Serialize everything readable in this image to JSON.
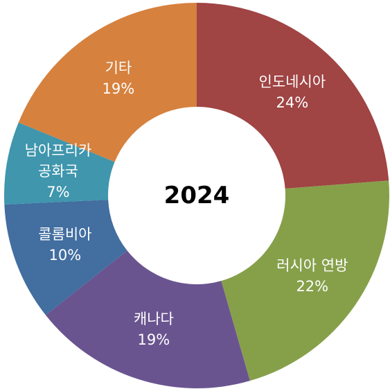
{
  "chart_data": {
    "type": "donut",
    "title": "2024",
    "categories": [
      "인도네시아",
      "러시아 연방",
      "캐나다",
      "콜롬비아",
      "남아프리카\n공화국",
      "기타"
    ],
    "values": [
      24,
      22,
      19,
      10,
      7,
      19
    ],
    "value_labels": [
      "24%",
      "22%",
      "19%",
      "10%",
      "7%",
      "19%"
    ],
    "colors": [
      "#a04444",
      "#86a04a",
      "#6a5490",
      "#426ea0",
      "#3f96ad",
      "#d6813e"
    ]
  }
}
